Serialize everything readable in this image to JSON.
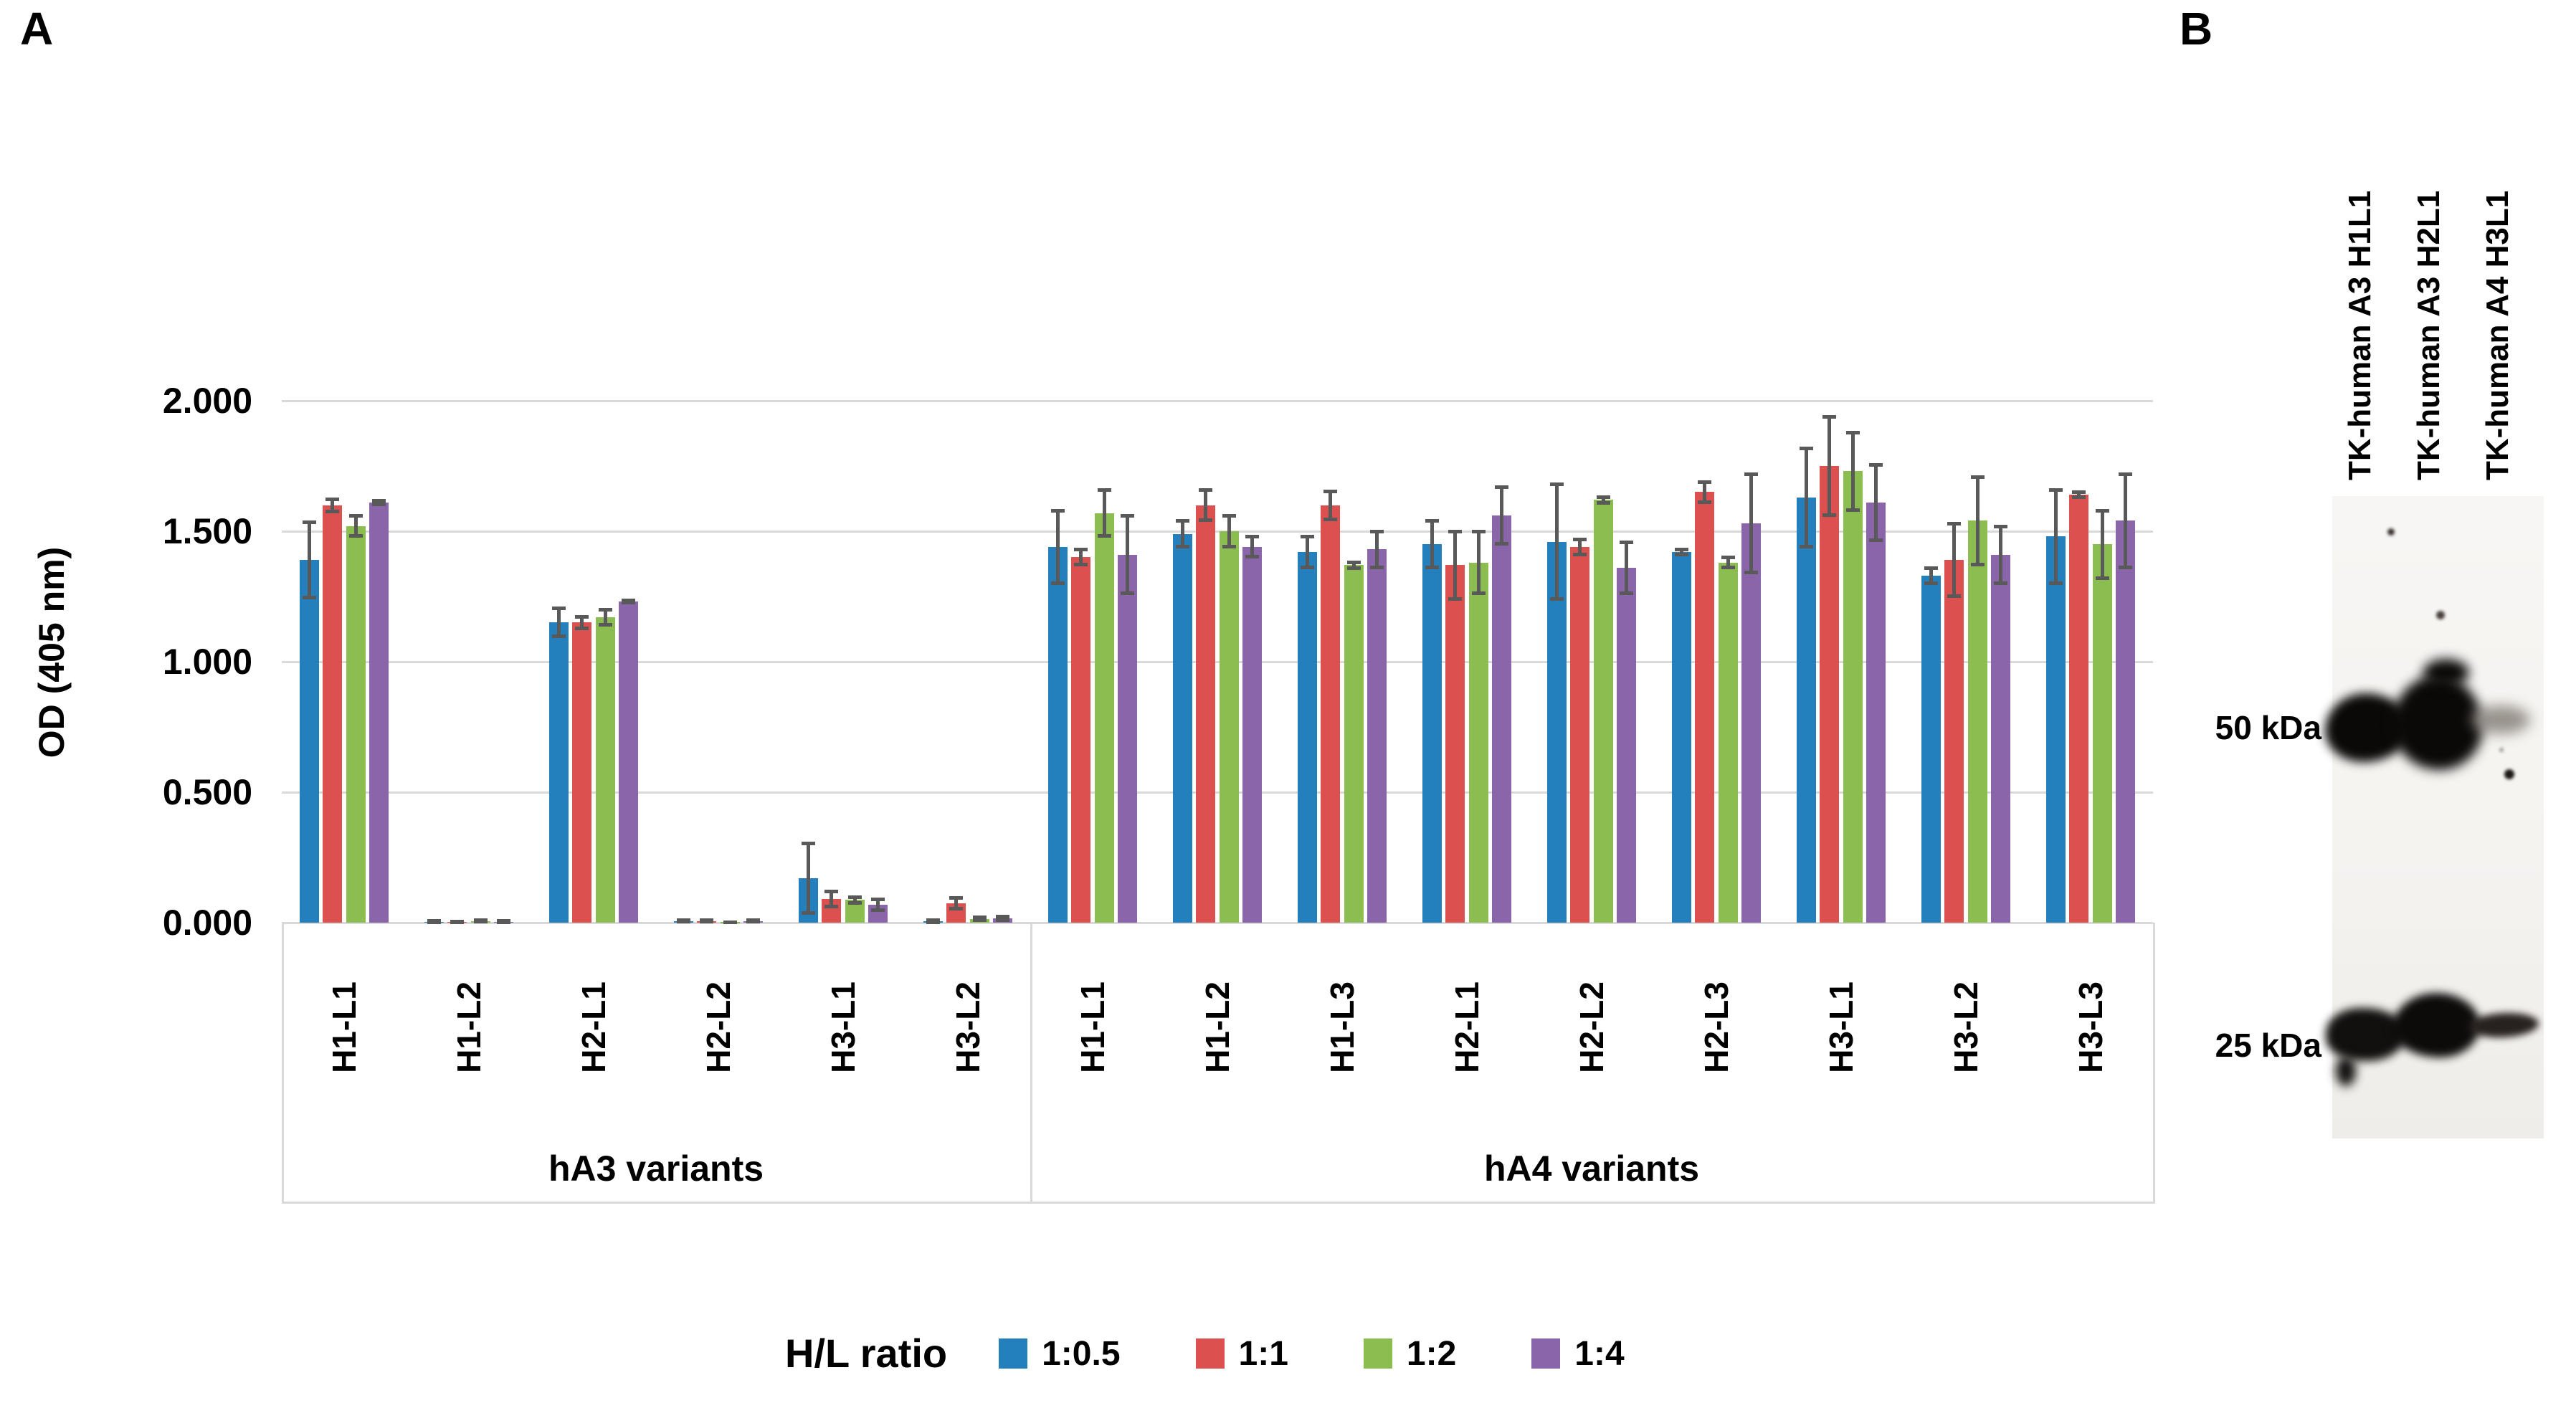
{
  "panel_a": {
    "label": "A"
  },
  "panel_b": {
    "label": "B",
    "lane_labels": [
      "TK-human A3 H1L1",
      "TK-human A3 H2L1",
      "TK-human A4 H3L1"
    ],
    "markers": [
      {
        "label": "50 kDa",
        "row": "50"
      },
      {
        "label": "25 kDa",
        "row": "25"
      }
    ],
    "bands": [
      {
        "lane": 0,
        "row": "50",
        "intensity": "strong"
      },
      {
        "lane": 1,
        "row": "50",
        "intensity": "strong-large"
      },
      {
        "lane": 2,
        "row": "50",
        "intensity": "faint"
      },
      {
        "lane": 0,
        "row": "25",
        "intensity": "strong"
      },
      {
        "lane": 1,
        "row": "25",
        "intensity": "strong-large"
      },
      {
        "lane": 2,
        "row": "25",
        "intensity": "medium-thin"
      }
    ]
  },
  "chart_data": {
    "type": "bar",
    "title": "",
    "xlabel": "",
    "ylabel": "OD (405 nm)",
    "ylim": [
      0,
      2.0
    ],
    "ytick_labels": [
      "0.000",
      "0.500",
      "1.000",
      "1.500",
      "2.000"
    ],
    "grid": true,
    "legend_title": "H/L ratio",
    "legend_position": "bottom",
    "category_sections": [
      {
        "name": "hA3 variants",
        "count": 6
      },
      {
        "name": "hA4 variants",
        "count": 9
      }
    ],
    "categories": [
      "H1-L1",
      "H1-L2",
      "H2-L1",
      "H2-L2",
      "H3-L1",
      "H3-L2",
      "H1-L1",
      "H1-L2",
      "H1-L3",
      "H2-L1",
      "H2-L2",
      "H2-L3",
      "H3-L1",
      "H3-L2",
      "H3-L3"
    ],
    "series": [
      {
        "name": "1:0.5",
        "color": "#2480BD",
        "values": [
          1.39,
          0.004,
          1.15,
          0.006,
          0.17,
          0.005,
          1.44,
          1.49,
          1.42,
          1.45,
          1.46,
          1.42,
          1.63,
          1.33,
          1.48
        ],
        "errors": [
          0.145,
          0.003,
          0.055,
          0.004,
          0.135,
          0.005,
          0.14,
          0.05,
          0.06,
          0.09,
          0.22,
          0.012,
          0.19,
          0.03,
          0.18
        ]
      },
      {
        "name": "1:1",
        "color": "#DC5150",
        "values": [
          1.6,
          0.003,
          1.15,
          0.006,
          0.09,
          0.075,
          1.4,
          1.6,
          1.6,
          1.37,
          1.44,
          1.65,
          1.75,
          1.39,
          1.64
        ],
        "errors": [
          0.025,
          0.002,
          0.023,
          0.004,
          0.03,
          0.022,
          0.03,
          0.06,
          0.055,
          0.13,
          0.03,
          0.04,
          0.19,
          0.14,
          0.012
        ]
      },
      {
        "name": "1:2",
        "color": "#8CBD50",
        "values": [
          1.52,
          0.006,
          1.17,
          0.002,
          0.087,
          0.015,
          1.57,
          1.5,
          1.37,
          1.38,
          1.62,
          1.38,
          1.73,
          1.54,
          1.45
        ],
        "errors": [
          0.04,
          0.004,
          0.03,
          0.002,
          0.012,
          0.008,
          0.09,
          0.06,
          0.012,
          0.12,
          0.012,
          0.02,
          0.15,
          0.17,
          0.13
        ]
      },
      {
        "name": "1:4",
        "color": "#8B65A9",
        "values": [
          1.61,
          0.004,
          1.23,
          0.006,
          0.069,
          0.017,
          1.41,
          1.44,
          1.43,
          1.56,
          1.36,
          1.53,
          1.61,
          1.41,
          1.54
        ],
        "errors": [
          0.008,
          0.004,
          0.006,
          0.004,
          0.023,
          0.008,
          0.15,
          0.04,
          0.07,
          0.11,
          0.1,
          0.19,
          0.145,
          0.11,
          0.18
        ]
      }
    ]
  }
}
